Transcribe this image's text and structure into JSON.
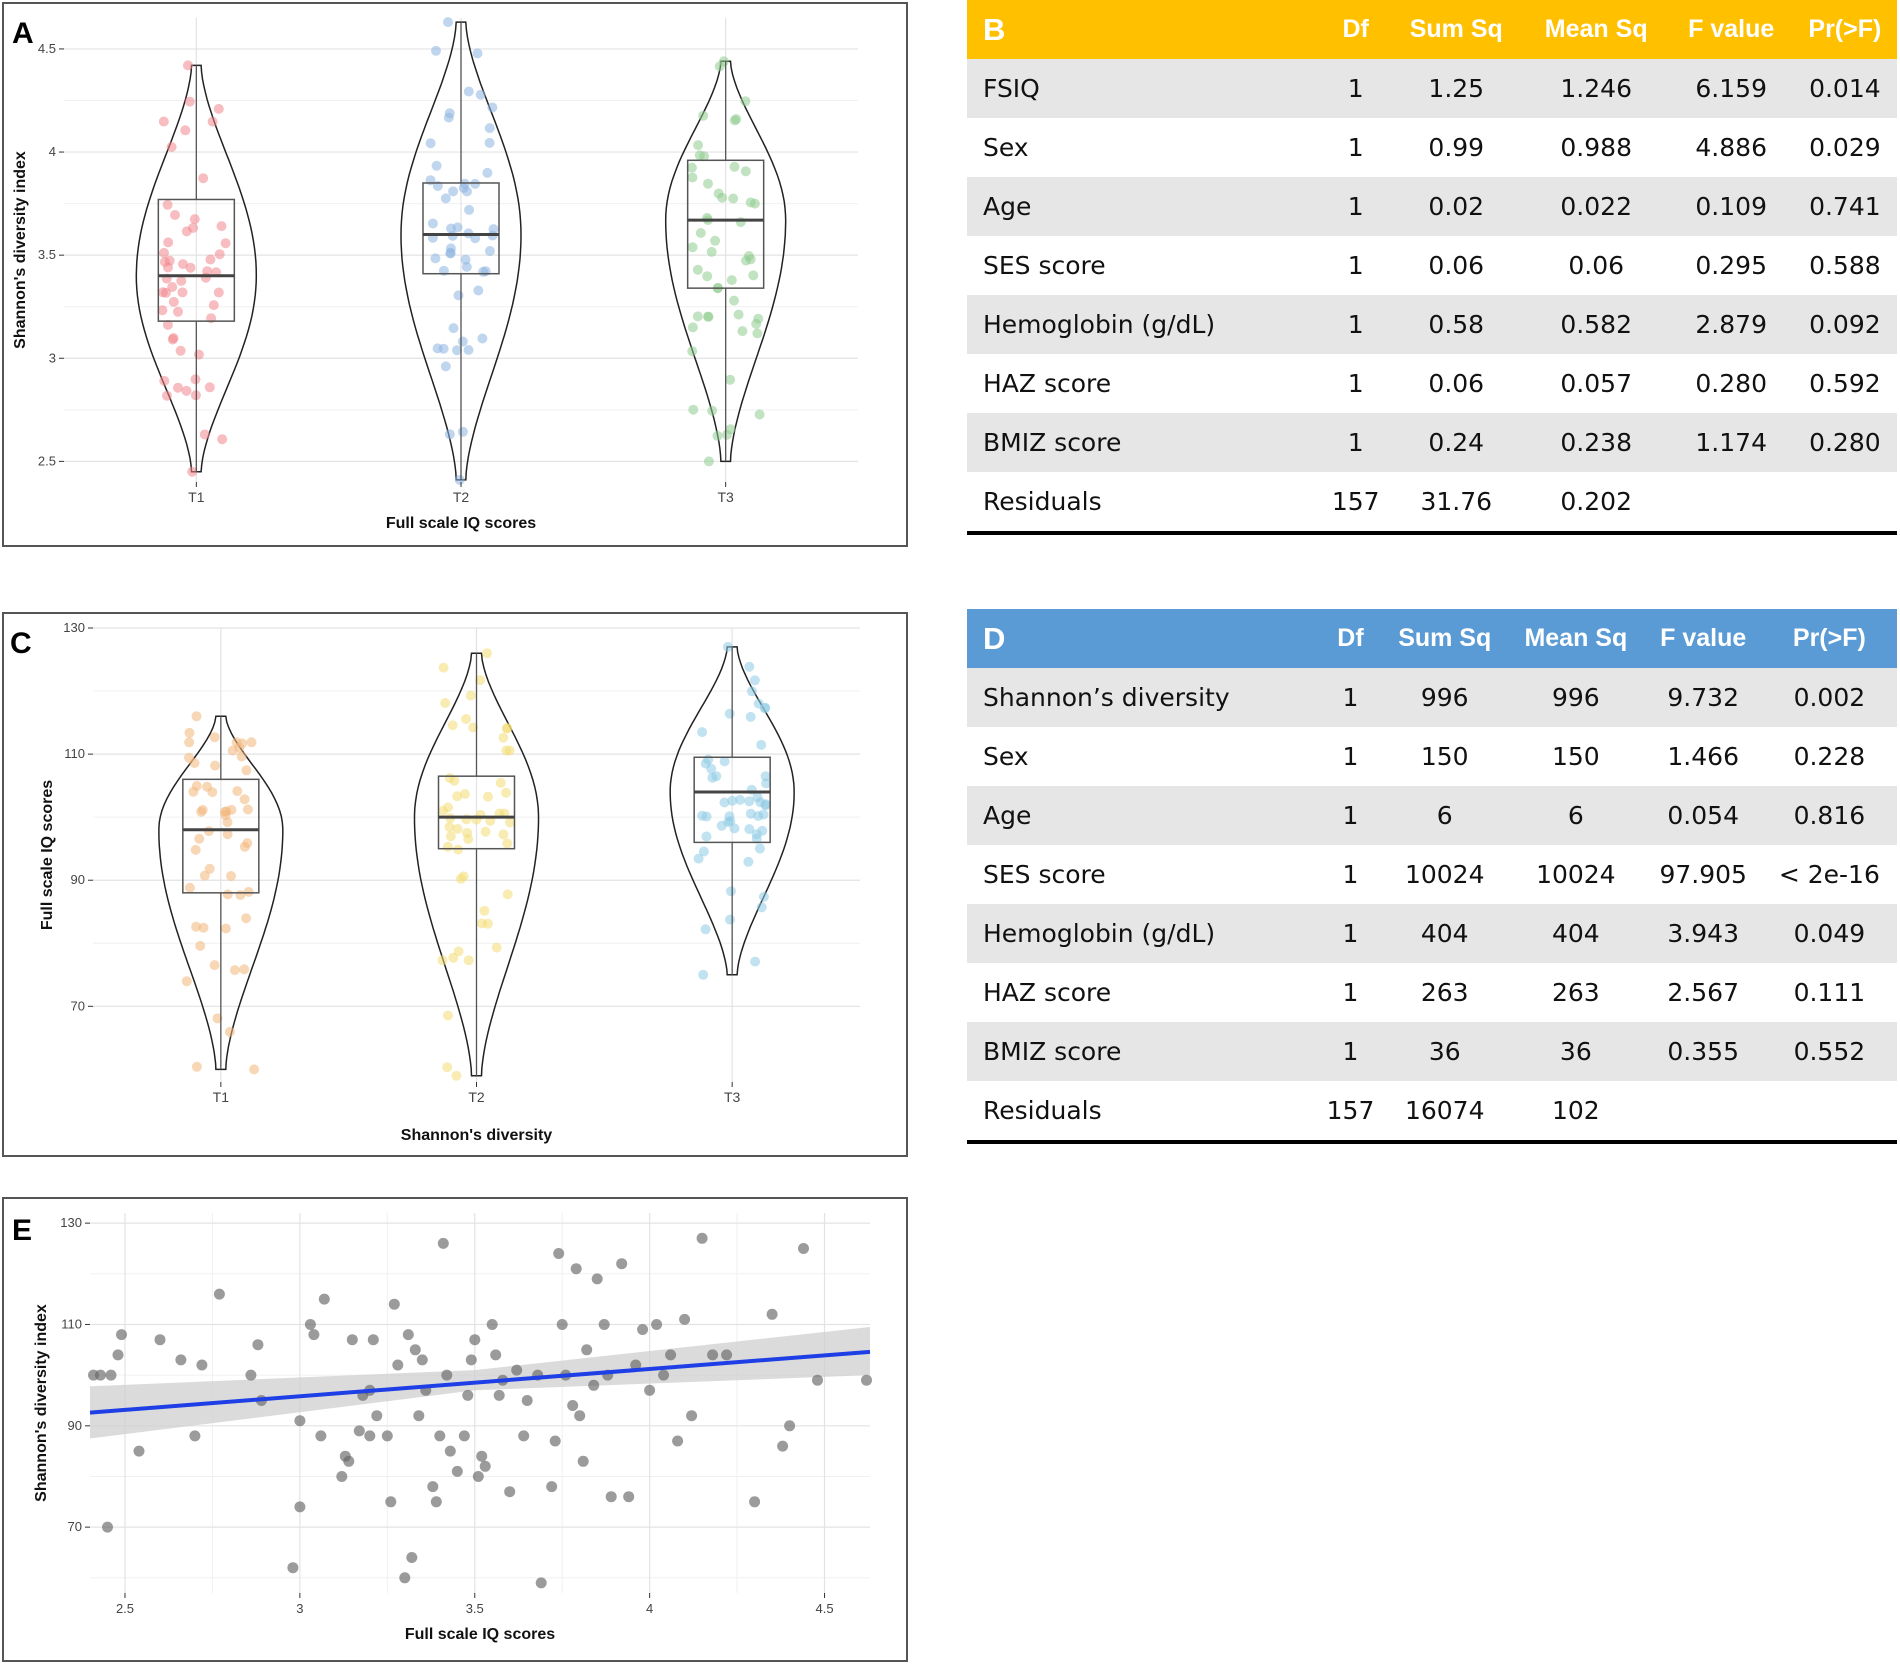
{
  "chart_data": [
    {
      "panel": "A",
      "type": "violin",
      "title": "",
      "xlabel": "Full scale IQ scores",
      "ylabel": "Shannon's diversity index",
      "ylim": [
        2.4,
        4.65
      ],
      "yticks": [
        2.5,
        3.0,
        3.5,
        4.0,
        4.5
      ],
      "categories": [
        "T1",
        "T2",
        "T3"
      ],
      "colors": [
        "#f0868c",
        "#8cb4e0",
        "#8fcc8f"
      ],
      "summary": [
        {
          "group": "T1",
          "min": 2.45,
          "q1": 3.18,
          "median": 3.4,
          "q3": 3.77,
          "max": 4.42
        },
        {
          "group": "T2",
          "min": 2.41,
          "q1": 3.41,
          "median": 3.6,
          "q3": 3.85,
          "max": 4.63
        },
        {
          "group": "T3",
          "min": 2.5,
          "q1": 3.34,
          "median": 3.67,
          "q3": 3.96,
          "max": 4.44
        }
      ]
    },
    {
      "panel": "C",
      "type": "violin",
      "title": "",
      "xlabel": "Shannon's diversity",
      "ylabel": "Full scale IQ scores",
      "ylim": [
        58,
        130
      ],
      "yticks": [
        70,
        90,
        110,
        130
      ],
      "categories": [
        "T1",
        "T2",
        "T3"
      ],
      "colors": [
        "#f2b77c",
        "#f2dc72",
        "#8ecbe4"
      ],
      "summary": [
        {
          "group": "T1",
          "min": 60,
          "q1": 88,
          "median": 98,
          "q3": 106,
          "max": 116
        },
        {
          "group": "T2",
          "min": 59,
          "q1": 95,
          "median": 100,
          "q3": 106.5,
          "max": 126
        },
        {
          "group": "T3",
          "min": 75,
          "q1": 96,
          "median": 104,
          "q3": 109.5,
          "max": 127
        }
      ]
    },
    {
      "panel": "E",
      "type": "scatter",
      "title": "",
      "xlabel": "Full scale IQ scores",
      "ylabel": "Shannon's diversity index",
      "xlim": [
        2.4,
        4.63
      ],
      "ylim": [
        57,
        132
      ],
      "xticks": [
        2.5,
        3.0,
        3.5,
        4.0,
        4.5
      ],
      "yticks": [
        70,
        90,
        110,
        130
      ],
      "point_color": "#666666",
      "fit_line": {
        "x": [
          2.4,
          4.63
        ],
        "y": [
          92.6,
          104.6
        ],
        "color": "#1f3fe6"
      },
      "confidence_band": {
        "x": [
          2.4,
          3.5,
          4.63
        ],
        "lower": [
          87.5,
          97.0,
          100.0
        ],
        "upper": [
          97.8,
          101.0,
          109.5
        ]
      },
      "points": [
        [
          2.41,
          100
        ],
        [
          2.43,
          100
        ],
        [
          2.46,
          100
        ],
        [
          2.45,
          70
        ],
        [
          2.48,
          104
        ],
        [
          2.49,
          108
        ],
        [
          2.54,
          85
        ],
        [
          2.6,
          107
        ],
        [
          2.66,
          103
        ],
        [
          2.7,
          88
        ],
        [
          2.72,
          102
        ],
        [
          2.77,
          116
        ],
        [
          2.86,
          100
        ],
        [
          2.88,
          106
        ],
        [
          2.89,
          95
        ],
        [
          2.98,
          62
        ],
        [
          3.0,
          74
        ],
        [
          3.0,
          91
        ],
        [
          3.03,
          110
        ],
        [
          3.04,
          108
        ],
        [
          3.06,
          88
        ],
        [
          3.07,
          115
        ],
        [
          3.12,
          80
        ],
        [
          3.13,
          84
        ],
        [
          3.14,
          83
        ],
        [
          3.15,
          107
        ],
        [
          3.17,
          89
        ],
        [
          3.18,
          96
        ],
        [
          3.2,
          97
        ],
        [
          3.2,
          88
        ],
        [
          3.21,
          107
        ],
        [
          3.22,
          92
        ],
        [
          3.25,
          88
        ],
        [
          3.26,
          75
        ],
        [
          3.27,
          114
        ],
        [
          3.28,
          102
        ],
        [
          3.3,
          60
        ],
        [
          3.31,
          108
        ],
        [
          3.32,
          64
        ],
        [
          3.33,
          105
        ],
        [
          3.34,
          92
        ],
        [
          3.35,
          103
        ],
        [
          3.36,
          97
        ],
        [
          3.38,
          78
        ],
        [
          3.39,
          75
        ],
        [
          3.4,
          88
        ],
        [
          3.41,
          126
        ],
        [
          3.42,
          100
        ],
        [
          3.43,
          85
        ],
        [
          3.45,
          81
        ],
        [
          3.47,
          88
        ],
        [
          3.48,
          96
        ],
        [
          3.49,
          103
        ],
        [
          3.5,
          107
        ],
        [
          3.51,
          80
        ],
        [
          3.52,
          84
        ],
        [
          3.53,
          82
        ],
        [
          3.55,
          110
        ],
        [
          3.56,
          104
        ],
        [
          3.57,
          96
        ],
        [
          3.58,
          99
        ],
        [
          3.6,
          77
        ],
        [
          3.62,
          101
        ],
        [
          3.64,
          88
        ],
        [
          3.65,
          95
        ],
        [
          3.68,
          100
        ],
        [
          3.69,
          59
        ],
        [
          3.72,
          78
        ],
        [
          3.73,
          87
        ],
        [
          3.74,
          124
        ],
        [
          3.75,
          110
        ],
        [
          3.76,
          100
        ],
        [
          3.78,
          94
        ],
        [
          3.79,
          121
        ],
        [
          3.8,
          92
        ],
        [
          3.81,
          83
        ],
        [
          3.82,
          105
        ],
        [
          3.84,
          98
        ],
        [
          3.85,
          119
        ],
        [
          3.87,
          110
        ],
        [
          3.88,
          100
        ],
        [
          3.89,
          76
        ],
        [
          3.92,
          122
        ],
        [
          3.94,
          76
        ],
        [
          3.96,
          102
        ],
        [
          3.98,
          109
        ],
        [
          4.0,
          97
        ],
        [
          4.02,
          110
        ],
        [
          4.04,
          100
        ],
        [
          4.06,
          104
        ],
        [
          4.08,
          87
        ],
        [
          4.1,
          111
        ],
        [
          4.12,
          92
        ],
        [
          4.15,
          127
        ],
        [
          4.18,
          104
        ],
        [
          4.22,
          104
        ],
        [
          4.3,
          75
        ],
        [
          4.35,
          112
        ],
        [
          4.38,
          86
        ],
        [
          4.4,
          90
        ],
        [
          4.44,
          125
        ],
        [
          4.48,
          99
        ],
        [
          4.62,
          99
        ]
      ]
    }
  ],
  "tables": {
    "b": {
      "label": "B",
      "header_color": "#ffc000",
      "columns": [
        "Df",
        "Sum Sq",
        "Mean Sq",
        "F value",
        "Pr(>F)"
      ],
      "rows": [
        [
          "FSIQ",
          "1",
          "1.25",
          "1.246",
          "6.159",
          "0.014"
        ],
        [
          "Sex",
          "1",
          "0.99",
          "0.988",
          "4.886",
          "0.029"
        ],
        [
          "Age",
          "1",
          "0.02",
          "0.022",
          "0.109",
          "0.741"
        ],
        [
          "SES score",
          "1",
          "0.06",
          "0.06",
          "0.295",
          "0.588"
        ],
        [
          "Hemoglobin (g/dL)",
          "1",
          "0.58",
          "0.582",
          "2.879",
          "0.092"
        ],
        [
          "HAZ score",
          "1",
          "0.06",
          "0.057",
          "0.280",
          "0.592"
        ],
        [
          "BMIZ score",
          "1",
          "0.24",
          "0.238",
          "1.174",
          "0.280"
        ],
        [
          "Residuals",
          "157",
          "31.76",
          "0.202",
          "",
          ""
        ]
      ]
    },
    "d": {
      "label": "D",
      "header_color": "#5b9bd5",
      "columns": [
        "Df",
        "Sum Sq",
        "Mean Sq",
        "F value",
        "Pr(>F)"
      ],
      "rows": [
        [
          "Shannon’s diversity",
          "1",
          "996",
          "996",
          "9.732",
          "0.002"
        ],
        [
          "Sex",
          "1",
          "150",
          "150",
          "1.466",
          "0.228"
        ],
        [
          "Age",
          "1",
          "6",
          "6",
          "0.054",
          "0.816"
        ],
        [
          "SES score",
          "1",
          "10024",
          "10024",
          "97.905",
          "< 2e-16"
        ],
        [
          "Hemoglobin (g/dL)",
          "1",
          "404",
          "404",
          "3.943",
          "0.049"
        ],
        [
          "HAZ score",
          "1",
          "263",
          "263",
          "2.567",
          "0.111"
        ],
        [
          "BMIZ score",
          "1",
          "36",
          "36",
          "0.355",
          "0.552"
        ],
        [
          "Residuals",
          "157",
          "16074",
          "102",
          "",
          ""
        ]
      ]
    }
  }
}
